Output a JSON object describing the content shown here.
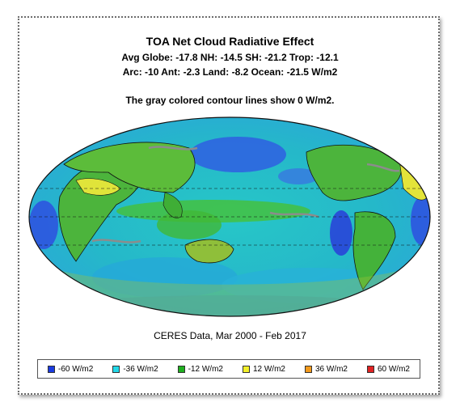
{
  "title": "TOA Net Cloud Radiative Effect",
  "stats_line1": "Avg Globe: -17.8  NH: -14.5  SH: -21.2  Trop: -12.1",
  "stats_line2": "Arc: -10  Ant: -2.3  Land: -8.2 Ocean: -21.5 W/m2",
  "note": "The gray colored contour lines show 0 W/m2.",
  "source": "CERES Data, Mar 2000 - Feb 2017",
  "legend": [
    {
      "label": "-60 W/m2",
      "color": "#1a3be0"
    },
    {
      "label": "-36 W/m2",
      "color": "#22d8e8"
    },
    {
      "label": "-12 W/m2",
      "color": "#1fb01f"
    },
    {
      "label": "12 W/m2",
      "color": "#f3f02a"
    },
    {
      "label": "36 W/m2",
      "color": "#f39a1c"
    },
    {
      "label": "60 W/m2",
      "color": "#e02222"
    }
  ],
  "colors": {
    "ocean_base": "#29c4c6",
    "ocean_deep": "#2f57e0",
    "land_base": "#46b43c",
    "land_warm": "#d8e43a",
    "contour": "#8c8c8c",
    "coast": "#111111"
  }
}
